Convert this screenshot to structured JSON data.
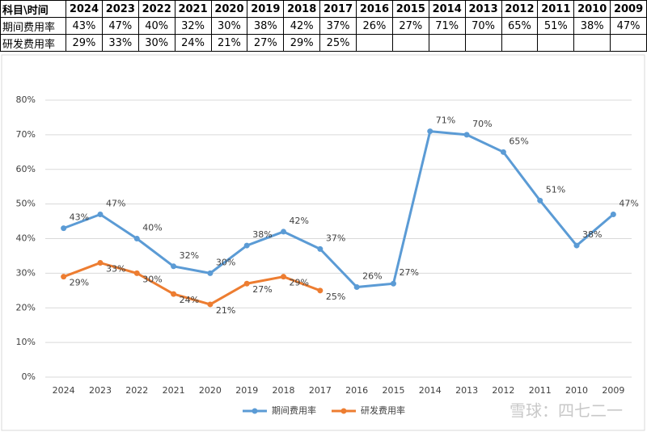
{
  "table": {
    "header": [
      "科目\\时间",
      "2024",
      "2023",
      "2022",
      "2021",
      "2020",
      "2019",
      "2018",
      "2017",
      "2016",
      "2015",
      "2014",
      "2013",
      "2012",
      "2011",
      "2010",
      "2009"
    ],
    "rows": [
      [
        "期间费用率",
        "43%",
        "47%",
        "40%",
        "32%",
        "30%",
        "38%",
        "42%",
        "37%",
        "26%",
        "27%",
        "71%",
        "70%",
        "65%",
        "51%",
        "38%",
        "47%"
      ],
      [
        "研发费用率",
        "29%",
        "33%",
        "30%",
        "24%",
        "21%",
        "27%",
        "29%",
        "25%"
      ]
    ]
  },
  "chart_data": {
    "type": "line",
    "categories": [
      "2024",
      "2023",
      "2022",
      "2021",
      "2020",
      "2019",
      "2018",
      "2017",
      "2016",
      "2015",
      "2014",
      "2013",
      "2012",
      "2011",
      "2010",
      "2009"
    ],
    "series": [
      {
        "name": "期间费用率",
        "color": "#5b9bd5",
        "values": [
          43,
          47,
          40,
          32,
          30,
          38,
          42,
          37,
          26,
          27,
          71,
          70,
          65,
          51,
          38,
          47
        ],
        "value_labels": [
          "43%",
          "47%",
          "40%",
          "32%",
          "30%",
          "38%",
          "42%",
          "37%",
          "26%",
          "27%",
          "71%",
          "70%",
          "65%",
          "51%",
          "38%",
          "47%"
        ]
      },
      {
        "name": "研发费用率",
        "color": "#ed7d31",
        "values": [
          29,
          33,
          30,
          24,
          21,
          27,
          29,
          25,
          null,
          null,
          null,
          null,
          null,
          null,
          null,
          null
        ],
        "value_labels": [
          "29%",
          "33%",
          "30%",
          "24%",
          "21%",
          "27%",
          "29%",
          "25%",
          null,
          null,
          null,
          null,
          null,
          null,
          null,
          null
        ]
      }
    ],
    "ylim": [
      0,
      80
    ],
    "yticks": [
      {
        "value": 0,
        "label": "0%"
      },
      {
        "value": 10,
        "label": "10%"
      },
      {
        "value": 20,
        "label": "20%"
      },
      {
        "value": 30,
        "label": "30%"
      },
      {
        "value": 40,
        "label": "40%"
      },
      {
        "value": 50,
        "label": "50%"
      },
      {
        "value": 60,
        "label": "60%"
      },
      {
        "value": 70,
        "label": "70%"
      },
      {
        "value": 80,
        "label": "80%"
      }
    ],
    "grid": true,
    "legend": "bottom"
  },
  "watermark": "雪球：四七二一"
}
